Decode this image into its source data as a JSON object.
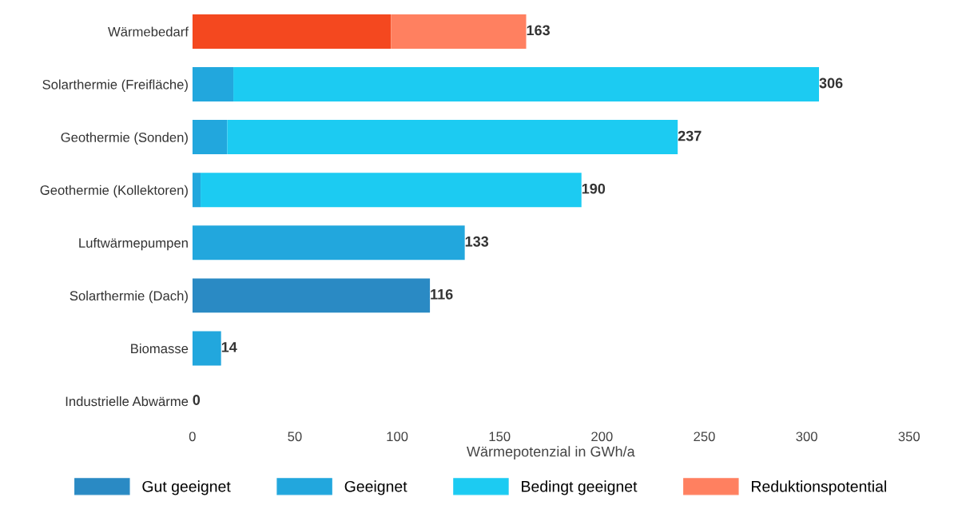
{
  "chart_data": {
    "type": "bar",
    "orientation": "horizontal",
    "stacked": true,
    "xlabel": "Wärmepotenzial in GWh/a",
    "categories": [
      "Wärmebedarf",
      "Solarthermie (Freifläche)",
      "Geothermie (Sonden)",
      "Geothermie (Kollektoren)",
      "Luftwärmepumpen",
      "Solarthermie (Dach)",
      "Biomasse",
      "Industrielle Abwärme"
    ],
    "series": [
      {
        "name": "Gut geeignet",
        "color": "#2a8ac4",
        "values": [
          null,
          null,
          null,
          null,
          null,
          116,
          null,
          0
        ]
      },
      {
        "name": "Geeignet",
        "color": "#22a7dd",
        "values": [
          null,
          20,
          17,
          4,
          133,
          null,
          14,
          null
        ]
      },
      {
        "name": "Bedingt geeignet",
        "color": "#1ccbf2",
        "values": [
          null,
          286,
          220,
          186,
          null,
          null,
          null,
          null
        ]
      },
      {
        "color": "#f4481f",
        "values": [
          97,
          null,
          null,
          null,
          null,
          null,
          null,
          null
        ]
      },
      {
        "name": "Reduktionspotential",
        "color": "#ff8060",
        "values": [
          66,
          null,
          null,
          null,
          null,
          null,
          null,
          null
        ]
      }
    ],
    "totals": [
      "163",
      "306",
      "237",
      "190",
      "133",
      "116",
      "14",
      "0"
    ],
    "xlim": [
      0,
      350
    ],
    "xticks": [
      0,
      50,
      100,
      150,
      200,
      250,
      300,
      350
    ],
    "grid": false,
    "legend": "bottom"
  }
}
